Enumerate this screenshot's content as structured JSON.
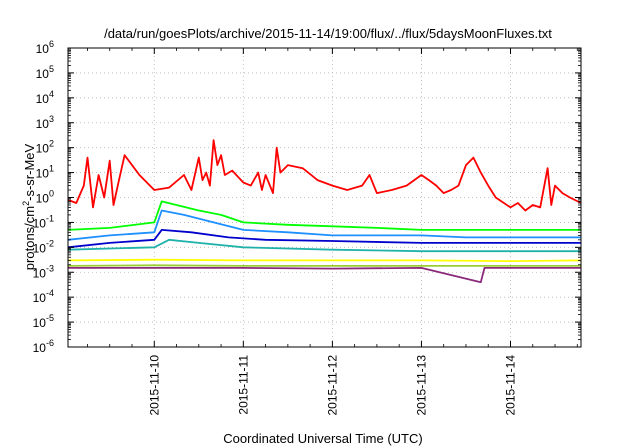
{
  "chart_data": {
    "type": "line",
    "title": "/data/run/goesPlots/archive/2015-11-14/19:00/flux/../flux/5daysMoonFluxes.txt",
    "xlabel": "Coordinated Universal Time (UTC)",
    "ylabel_parts": {
      "base": "protons/cm",
      "sup": "2",
      "rest": "-s-sr-MeV"
    },
    "x_axis": {
      "type": "date",
      "range": [
        "2015-11-09T00:45",
        "2015-11-14T19:00"
      ],
      "ticks": [
        "2015-11-10",
        "2015-11-11",
        "2015-11-12",
        "2015-11-13",
        "2015-11-14"
      ]
    },
    "y_axis": {
      "scale": "log",
      "range": [
        1e-06,
        1000000.0
      ],
      "tick_base": "10",
      "tick_exponents": [
        "-6",
        "-5",
        "-4",
        "-3",
        "-2",
        "-1",
        "0",
        "1",
        "2",
        "3",
        "4",
        "5",
        "6"
      ]
    },
    "grid": true,
    "legend": "none",
    "series": [
      {
        "color": "#ff0000",
        "points": [
          [
            "2015-11-09T00:45",
            0.8
          ],
          [
            "2015-11-09T03:00",
            0.6
          ],
          [
            "2015-11-09T05:00",
            3
          ],
          [
            "2015-11-09T06:00",
            40
          ],
          [
            "2015-11-09T07:30",
            0.4
          ],
          [
            "2015-11-09T09:00",
            8
          ],
          [
            "2015-11-09T10:30",
            1
          ],
          [
            "2015-11-09T12:00",
            30
          ],
          [
            "2015-11-09T13:00",
            0.5
          ],
          [
            "2015-11-09T14:30",
            5
          ],
          [
            "2015-11-09T16:00",
            50
          ],
          [
            "2015-11-09T18:00",
            20
          ],
          [
            "2015-11-09T20:00",
            8
          ],
          [
            "2015-11-10T00:00",
            2
          ],
          [
            "2015-11-10T04:00",
            2.5
          ],
          [
            "2015-11-10T08:00",
            8
          ],
          [
            "2015-11-10T10:00",
            2
          ],
          [
            "2015-11-10T12:00",
            40
          ],
          [
            "2015-11-10T13:00",
            5
          ],
          [
            "2015-11-10T14:00",
            10
          ],
          [
            "2015-11-10T15:00",
            3
          ],
          [
            "2015-11-10T16:00",
            200
          ],
          [
            "2015-11-10T17:00",
            20
          ],
          [
            "2015-11-10T18:00",
            50
          ],
          [
            "2015-11-10T19:00",
            8
          ],
          [
            "2015-11-10T21:00",
            12
          ],
          [
            "2015-11-11T00:00",
            4
          ],
          [
            "2015-11-11T02:00",
            3
          ],
          [
            "2015-11-11T04:00",
            10
          ],
          [
            "2015-11-11T05:00",
            2
          ],
          [
            "2015-11-11T06:00",
            8
          ],
          [
            "2015-11-11T08:00",
            1.5
          ],
          [
            "2015-11-11T09:00",
            100
          ],
          [
            "2015-11-11T10:00",
            10
          ],
          [
            "2015-11-11T12:00",
            20
          ],
          [
            "2015-11-11T16:00",
            15
          ],
          [
            "2015-11-11T20:00",
            5
          ],
          [
            "2015-11-12T00:00",
            3
          ],
          [
            "2015-11-12T04:00",
            2
          ],
          [
            "2015-11-12T08:00",
            3
          ],
          [
            "2015-11-12T10:00",
            8
          ],
          [
            "2015-11-12T12:00",
            1.5
          ],
          [
            "2015-11-12T16:00",
            2
          ],
          [
            "2015-11-12T20:00",
            3
          ],
          [
            "2015-11-13T00:00",
            8
          ],
          [
            "2015-11-13T02:00",
            5
          ],
          [
            "2015-11-13T04:00",
            3
          ],
          [
            "2015-11-13T06:00",
            1.5
          ],
          [
            "2015-11-13T08:00",
            2
          ],
          [
            "2015-11-13T10:00",
            3
          ],
          [
            "2015-11-13T12:00",
            20
          ],
          [
            "2015-11-13T14:00",
            40
          ],
          [
            "2015-11-13T16:00",
            10
          ],
          [
            "2015-11-13T18:00",
            3
          ],
          [
            "2015-11-13T20:00",
            1
          ],
          [
            "2015-11-14T00:00",
            0.4
          ],
          [
            "2015-11-14T02:00",
            0.6
          ],
          [
            "2015-11-14T04:00",
            0.3
          ],
          [
            "2015-11-14T06:00",
            0.5
          ],
          [
            "2015-11-14T08:00",
            0.4
          ],
          [
            "2015-11-14T10:00",
            15
          ],
          [
            "2015-11-14T11:00",
            0.5
          ],
          [
            "2015-11-14T12:00",
            3
          ],
          [
            "2015-11-14T14:00",
            1.5
          ],
          [
            "2015-11-14T16:00",
            1
          ],
          [
            "2015-11-14T19:00",
            0.6
          ]
        ]
      },
      {
        "color": "#00ff00",
        "points": [
          [
            "2015-11-09T00:45",
            0.05
          ],
          [
            "2015-11-09T12:00",
            0.06
          ],
          [
            "2015-11-10T00:00",
            0.1
          ],
          [
            "2015-11-10T02:00",
            0.7
          ],
          [
            "2015-11-10T06:00",
            0.5
          ],
          [
            "2015-11-10T12:00",
            0.3
          ],
          [
            "2015-11-10T18:00",
            0.2
          ],
          [
            "2015-11-11T00:00",
            0.1
          ],
          [
            "2015-11-11T12:00",
            0.08
          ],
          [
            "2015-11-12T00:00",
            0.07
          ],
          [
            "2015-11-12T12:00",
            0.06
          ],
          [
            "2015-11-13T00:00",
            0.05
          ],
          [
            "2015-11-13T12:00",
            0.05
          ],
          [
            "2015-11-14T00:00",
            0.05
          ],
          [
            "2015-11-14T12:00",
            0.05
          ],
          [
            "2015-11-14T19:00",
            0.05
          ]
        ]
      },
      {
        "color": "#1e90ff",
        "points": [
          [
            "2015-11-09T00:45",
            0.02
          ],
          [
            "2015-11-09T12:00",
            0.03
          ],
          [
            "2015-11-10T00:00",
            0.04
          ],
          [
            "2015-11-10T02:00",
            0.3
          ],
          [
            "2015-11-10T08:00",
            0.2
          ],
          [
            "2015-11-10T16:00",
            0.1
          ],
          [
            "2015-11-11T00:00",
            0.05
          ],
          [
            "2015-11-11T12:00",
            0.04
          ],
          [
            "2015-11-12T00:00",
            0.03
          ],
          [
            "2015-11-12T12:00",
            0.03
          ],
          [
            "2015-11-13T00:00",
            0.03
          ],
          [
            "2015-11-13T12:00",
            0.025
          ],
          [
            "2015-11-14T00:00",
            0.025
          ],
          [
            "2015-11-14T12:00",
            0.025
          ],
          [
            "2015-11-14T19:00",
            0.025
          ]
        ]
      },
      {
        "color": "#0000cd",
        "points": [
          [
            "2015-11-09T00:45",
            0.01
          ],
          [
            "2015-11-09T12:00",
            0.015
          ],
          [
            "2015-11-10T00:00",
            0.02
          ],
          [
            "2015-11-10T02:00",
            0.05
          ],
          [
            "2015-11-10T10:00",
            0.04
          ],
          [
            "2015-11-10T20:00",
            0.025
          ],
          [
            "2015-11-11T06:00",
            0.02
          ],
          [
            "2015-11-12T00:00",
            0.018
          ],
          [
            "2015-11-13T00:00",
            0.015
          ],
          [
            "2015-11-14T00:00",
            0.015
          ],
          [
            "2015-11-14T19:00",
            0.015
          ]
        ]
      },
      {
        "color": "#20b2aa",
        "points": [
          [
            "2015-11-09T00:45",
            0.008
          ],
          [
            "2015-11-10T00:00",
            0.01
          ],
          [
            "2015-11-10T04:00",
            0.02
          ],
          [
            "2015-11-10T12:00",
            0.015
          ],
          [
            "2015-11-11T00:00",
            0.01
          ],
          [
            "2015-11-12T00:00",
            0.008
          ],
          [
            "2015-11-13T00:00",
            0.007
          ],
          [
            "2015-11-14T00:00",
            0.007
          ],
          [
            "2015-11-14T19:00",
            0.007
          ]
        ]
      },
      {
        "color": "#ffff00",
        "points": [
          [
            "2015-11-09T00:45",
            0.003
          ],
          [
            "2015-11-10T00:00",
            0.0032
          ],
          [
            "2015-11-11T00:00",
            0.003
          ],
          [
            "2015-11-12T00:00",
            0.003
          ],
          [
            "2015-11-13T00:00",
            0.003
          ],
          [
            "2015-11-14T00:00",
            0.0028
          ],
          [
            "2015-11-14T19:00",
            0.003
          ]
        ]
      },
      {
        "color": "#9acd32",
        "points": [
          [
            "2015-11-09T00:45",
            0.0018
          ],
          [
            "2015-11-10T00:00",
            0.0019
          ],
          [
            "2015-11-11T00:00",
            0.0018
          ],
          [
            "2015-11-12T00:00",
            0.0018
          ],
          [
            "2015-11-13T00:00",
            0.0018
          ],
          [
            "2015-11-14T00:00",
            0.0018
          ],
          [
            "2015-11-14T19:00",
            0.0018
          ]
        ]
      },
      {
        "color": "#8b2a7a",
        "points": [
          [
            "2015-11-09T00:45",
            0.0015
          ],
          [
            "2015-11-10T00:00",
            0.0015
          ],
          [
            "2015-11-11T00:00",
            0.0015
          ],
          [
            "2015-11-12T00:00",
            0.0014
          ],
          [
            "2015-11-13T00:00",
            0.0015
          ],
          [
            "2015-11-13T16:00",
            0.0004
          ],
          [
            "2015-11-13T17:00",
            0.0015
          ],
          [
            "2015-11-14T00:00",
            0.0015
          ],
          [
            "2015-11-14T19:00",
            0.0015
          ]
        ]
      }
    ]
  }
}
